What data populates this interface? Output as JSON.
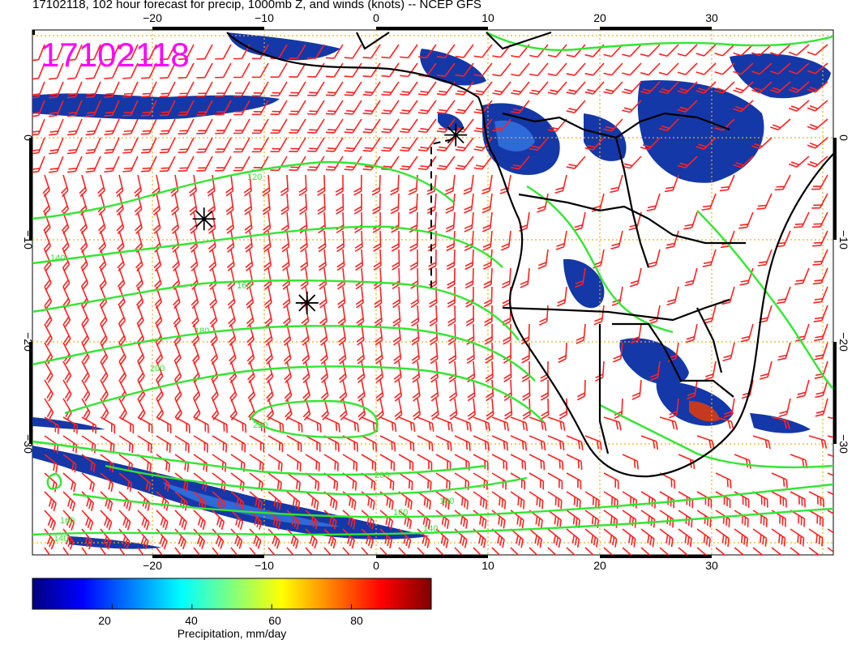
{
  "title": "17102118, 102 hour forecast for precip, 1000mb Z, and winds (knots) -- NCEP GFS",
  "timestamp_stamp": "17102118",
  "colors": {
    "contour": "#32e632",
    "barb": "#ff2020",
    "grid": "#e0b020",
    "coast": "#000000",
    "stamp": "#ff00ff"
  },
  "map": {
    "lon_range": [
      -30,
      40
    ],
    "lat_range": [
      -40,
      10
    ],
    "lon_ticks_bottom": [
      "−20",
      "−10",
      "0",
      "10",
      "20",
      "30"
    ],
    "lon_ticks_top": [
      "−20",
      "−10",
      "0",
      "10",
      "20",
      "30"
    ],
    "lat_ticks_left": [
      "0",
      "−10",
      "−20",
      "−30"
    ],
    "lat_ticks_right": [
      "0",
      "−10",
      "−20",
      "−30"
    ],
    "contour_labels": [
      "120",
      "140",
      "160",
      "180",
      "200",
      "220",
      "140",
      "160",
      "180",
      "200",
      "140",
      "160"
    ],
    "highs": [
      {
        "lon": -15,
        "lat": -8
      },
      {
        "lon": -6,
        "lat": -16
      },
      {
        "lon": 7,
        "lat": 0
      }
    ]
  },
  "colorbar": {
    "label": "Precipitation, mm/day",
    "ticks": [
      "20",
      "40",
      "60",
      "80"
    ],
    "tick_values": [
      20,
      40,
      60,
      80
    ],
    "range": [
      0,
      100
    ],
    "stops": [
      "#00007f",
      "#0000ff",
      "#0080ff",
      "#00ffff",
      "#80ff80",
      "#ffff00",
      "#ff8000",
      "#ff0000",
      "#7f0000"
    ]
  }
}
